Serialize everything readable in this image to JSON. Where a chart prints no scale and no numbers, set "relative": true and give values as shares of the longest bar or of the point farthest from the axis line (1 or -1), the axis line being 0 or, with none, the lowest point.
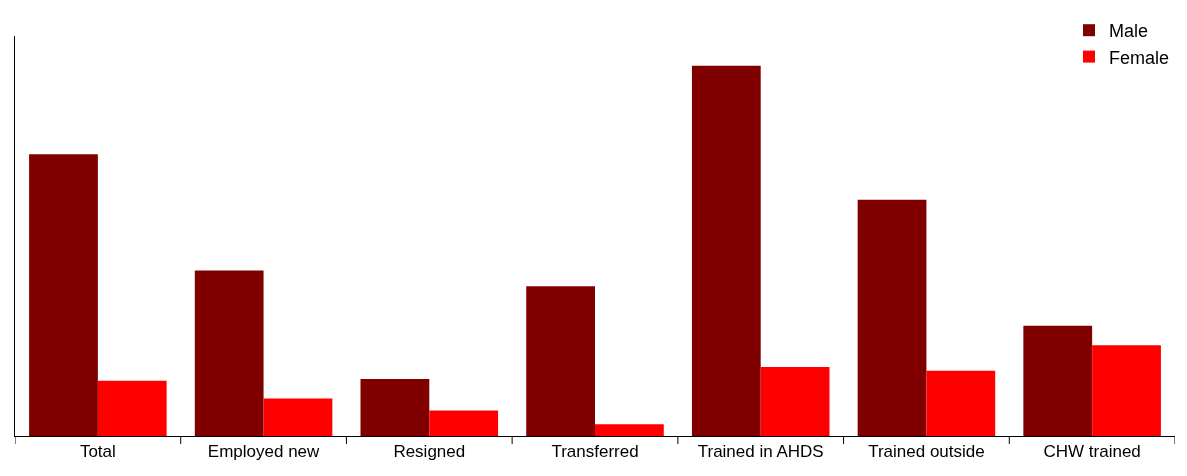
{
  "chart_data": {
    "type": "bar",
    "relative": true,
    "categories": [
      "Total",
      "Employed new",
      "Resigned",
      "Transferred",
      "Trained in AHDS",
      "Trained outside",
      "CHW trained"
    ],
    "series": [
      {
        "name": "Male",
        "color": "#800000",
        "values": [
          0.761,
          0.447,
          0.154,
          0.404,
          1,
          0.638,
          0.298
        ]
      },
      {
        "name": "Female",
        "color": "#ff0000",
        "values": [
          0.149,
          0.101,
          0.069,
          0.032,
          0.186,
          0.176,
          0.245
        ]
      }
    ],
    "legend": "top right"
  }
}
